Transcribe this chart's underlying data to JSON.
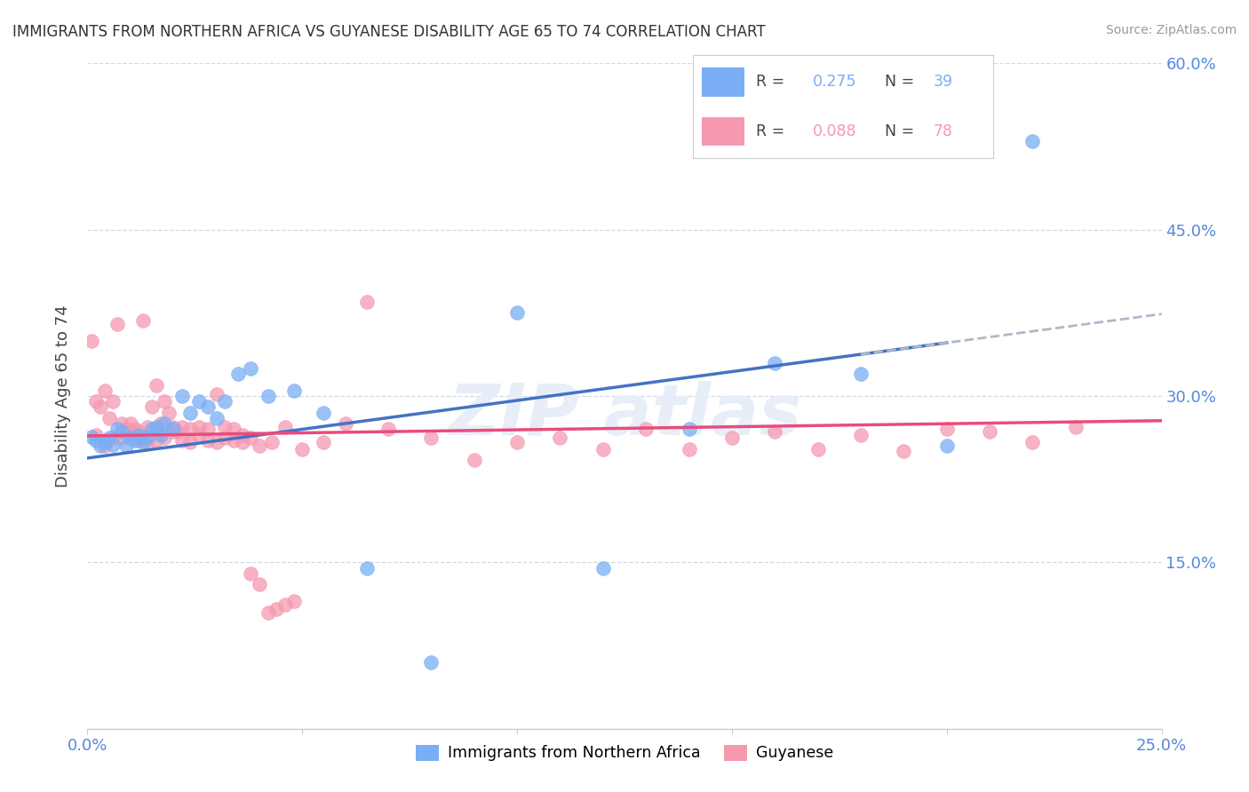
{
  "title": "IMMIGRANTS FROM NORTHERN AFRICA VS GUYANESE DISABILITY AGE 65 TO 74 CORRELATION CHART",
  "source": "Source: ZipAtlas.com",
  "ylabel": "Disability Age 65 to 74",
  "xlim": [
    0.0,
    0.25
  ],
  "ylim": [
    0.0,
    0.6
  ],
  "xticks": [
    0.0,
    0.05,
    0.1,
    0.15,
    0.2,
    0.25
  ],
  "xtick_labels": [
    "0.0%",
    "",
    "",
    "",
    "",
    "25.0%"
  ],
  "yticks": [
    0.0,
    0.15,
    0.3,
    0.45,
    0.6
  ],
  "ytick_labels_right": [
    "",
    "15.0%",
    "30.0%",
    "45.0%",
    "60.0%"
  ],
  "legend1_R": "0.275",
  "legend1_N": "39",
  "legend2_R": "0.088",
  "legend2_N": "78",
  "blue_color": "#7aaef5",
  "pink_color": "#f598b0",
  "trendline_blue_color": "#4472c4",
  "trendline_pink_color": "#e84c7d",
  "dashed_color": "#b0b8c8",
  "blue_scatter_x": [
    0.001,
    0.002,
    0.003,
    0.004,
    0.005,
    0.006,
    0.007,
    0.008,
    0.009,
    0.01,
    0.011,
    0.012,
    0.013,
    0.014,
    0.015,
    0.016,
    0.017,
    0.018,
    0.02,
    0.022,
    0.024,
    0.026,
    0.028,
    0.03,
    0.032,
    0.035,
    0.038,
    0.042,
    0.048,
    0.055,
    0.065,
    0.08,
    0.1,
    0.12,
    0.14,
    0.16,
    0.18,
    0.2,
    0.22
  ],
  "blue_scatter_y": [
    0.263,
    0.26,
    0.255,
    0.258,
    0.262,
    0.256,
    0.27,
    0.268,
    0.255,
    0.262,
    0.26,
    0.265,
    0.258,
    0.263,
    0.27,
    0.272,
    0.265,
    0.275,
    0.27,
    0.3,
    0.285,
    0.295,
    0.29,
    0.28,
    0.295,
    0.32,
    0.325,
    0.3,
    0.305,
    0.285,
    0.145,
    0.06,
    0.375,
    0.145,
    0.27,
    0.33,
    0.32,
    0.255,
    0.53
  ],
  "pink_scatter_x": [
    0.001,
    0.002,
    0.003,
    0.004,
    0.005,
    0.006,
    0.007,
    0.008,
    0.009,
    0.01,
    0.011,
    0.012,
    0.013,
    0.014,
    0.015,
    0.016,
    0.017,
    0.018,
    0.019,
    0.02,
    0.021,
    0.022,
    0.024,
    0.026,
    0.028,
    0.03,
    0.032,
    0.034,
    0.036,
    0.038,
    0.04,
    0.043,
    0.046,
    0.05,
    0.055,
    0.06,
    0.065,
    0.07,
    0.08,
    0.09,
    0.1,
    0.11,
    0.12,
    0.13,
    0.14,
    0.15,
    0.16,
    0.17,
    0.18,
    0.19,
    0.2,
    0.21,
    0.22,
    0.23,
    0.002,
    0.004,
    0.006,
    0.008,
    0.01,
    0.012,
    0.014,
    0.016,
    0.018,
    0.02,
    0.022,
    0.024,
    0.026,
    0.028,
    0.03,
    0.032,
    0.034,
    0.036,
    0.038,
    0.04,
    0.042,
    0.044,
    0.046,
    0.048
  ],
  "pink_scatter_y": [
    0.35,
    0.295,
    0.29,
    0.305,
    0.28,
    0.295,
    0.365,
    0.275,
    0.27,
    0.268,
    0.27,
    0.268,
    0.368,
    0.272,
    0.29,
    0.31,
    0.275,
    0.295,
    0.285,
    0.272,
    0.268,
    0.272,
    0.27,
    0.272,
    0.27,
    0.302,
    0.272,
    0.27,
    0.265,
    0.262,
    0.255,
    0.258,
    0.272,
    0.252,
    0.258,
    0.275,
    0.385,
    0.27,
    0.262,
    0.242,
    0.258,
    0.262,
    0.252,
    0.27,
    0.252,
    0.262,
    0.268,
    0.252,
    0.265,
    0.25,
    0.27,
    0.268,
    0.258,
    0.272,
    0.265,
    0.255,
    0.262,
    0.262,
    0.275,
    0.26,
    0.258,
    0.26,
    0.262,
    0.268,
    0.26,
    0.258,
    0.265,
    0.26,
    0.258,
    0.262,
    0.26,
    0.258,
    0.14,
    0.13,
    0.105,
    0.108,
    0.112,
    0.115
  ]
}
